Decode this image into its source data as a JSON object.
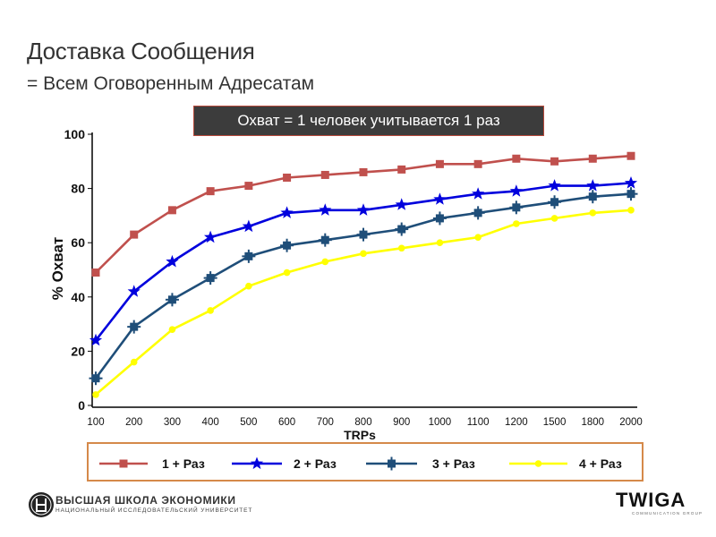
{
  "slide": {
    "title": "Доставка Сообщения",
    "subtitle": "= Всем Оговоренным Адресатам",
    "banner": "Охват = 1 человек учитывается 1 раз"
  },
  "footer": {
    "left_logo_line1": "ВЫСШАЯ ШКОЛА ЭКОНОМИКИ",
    "left_logo_line2": "НАЦИОНАЛЬНЫЙ ИССЛЕДОВАТЕЛЬСКИЙ УНИВЕРСИТЕТ",
    "right_logo": "TWIGA",
    "right_logo_sub": "COMMUNICATION GROUP"
  },
  "chart_data": {
    "type": "line",
    "xlabel": "TRPs",
    "ylabel": "% Охват",
    "ylim": [
      0,
      100
    ],
    "yticks": [
      0,
      20,
      40,
      60,
      80,
      100
    ],
    "categories": [
      "100",
      "200",
      "300",
      "400",
      "500",
      "600",
      "700",
      "800",
      "900",
      "1000",
      "1100",
      "1200",
      "1500",
      "1800",
      "2000"
    ],
    "legend_position": "bottom",
    "series": [
      {
        "name": "1 + Раз",
        "color": "#c0504d",
        "marker": "square",
        "values": [
          49,
          63,
          72,
          79,
          81,
          84,
          85,
          86,
          87,
          89,
          89,
          91,
          90,
          91,
          92
        ]
      },
      {
        "name": "2 + Раз",
        "color": "#0000dd",
        "marker": "star",
        "values": [
          24,
          42,
          53,
          62,
          66,
          71,
          72,
          72,
          74,
          76,
          78,
          79,
          81,
          81,
          82
        ]
      },
      {
        "name": "3 + Раз",
        "color": "#1f4e79",
        "marker": "plus-square",
        "values": [
          10,
          29,
          39,
          47,
          55,
          59,
          61,
          63,
          65,
          69,
          71,
          73,
          75,
          77,
          78
        ]
      },
      {
        "name": "4 + Раз",
        "color": "#ffff00",
        "marker": "circle",
        "values": [
          4,
          16,
          28,
          35,
          44,
          49,
          53,
          56,
          58,
          60,
          62,
          67,
          69,
          71,
          72
        ]
      }
    ]
  }
}
